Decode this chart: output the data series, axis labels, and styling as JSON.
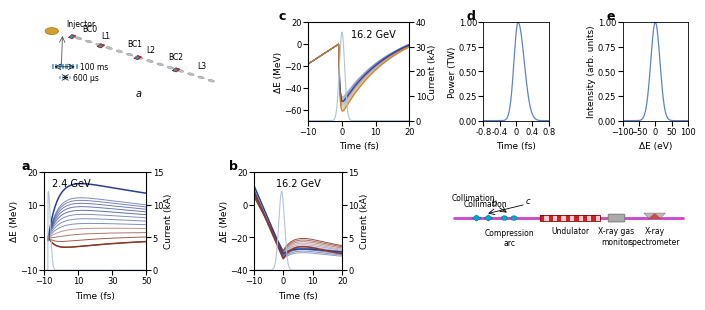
{
  "panel_a": {
    "xlim": [
      -10,
      50
    ],
    "ylim_left": [
      -10,
      20
    ],
    "ylim_right": [
      0,
      15
    ],
    "xlabel": "Time (fs)",
    "ylabel_left": "ΔE (MeV)",
    "ylabel_right": "Current (kA)",
    "annotation": "2.4 GeV",
    "xticks": [
      -10,
      10,
      30,
      50
    ],
    "yticks": [
      -10,
      0,
      10,
      20
    ],
    "yticks_r": [
      0,
      5,
      10,
      15
    ]
  },
  "panel_b": {
    "xlim": [
      -10,
      20
    ],
    "ylim_left": [
      -40,
      20
    ],
    "ylim_right": [
      0,
      15
    ],
    "xlabel": "Time (fs)",
    "ylabel_left": "ΔE (MeV)",
    "ylabel_right": "Current (kA)",
    "annotation": "16.2 GeV",
    "xticks": [
      -10,
      0,
      10,
      20
    ],
    "yticks": [
      -40,
      -20,
      0,
      20
    ],
    "yticks_r": [
      0,
      5,
      10,
      15
    ]
  },
  "panel_c": {
    "xlim": [
      -10,
      20
    ],
    "ylim_left": [
      -70,
      20
    ],
    "ylim_right": [
      0,
      40
    ],
    "xlabel": "Time (fs)",
    "ylabel_left": "ΔE (MeV)",
    "ylabel_right": "Current (kA)",
    "annotation": "16.2 GeV",
    "xticks": [
      -10,
      0,
      10,
      20
    ],
    "yticks": [
      -60,
      -40,
      -20,
      0,
      20
    ],
    "yticks_r": [
      0,
      10,
      20,
      30,
      40
    ]
  },
  "panel_d": {
    "xlim": [
      -0.8,
      0.8
    ],
    "ylim": [
      0,
      1.0
    ],
    "xlabel": "Time (fs)",
    "ylabel": "Power (TW)",
    "xticks": [
      -0.8,
      -0.4,
      0,
      0.4,
      0.8
    ],
    "yticks": [
      0,
      0.25,
      0.5,
      0.75,
      1.0
    ]
  },
  "panel_e": {
    "xlim": [
      -100,
      100
    ],
    "ylim": [
      0,
      1.0
    ],
    "xlabel": "ΔE (eV)",
    "ylabel": "Intensity (arb. units)",
    "xticks": [
      -100,
      -50,
      0,
      50,
      100
    ],
    "yticks": [
      0,
      0.25,
      0.5,
      0.75,
      1.0
    ]
  },
  "colors": {
    "blue_dark": "#2a3f8f",
    "blue_mid": "#4a5fa0",
    "purple": "#6b4e9e",
    "orange": "#c8872a",
    "orange_light": "#d4a060",
    "red_brown": "#8b3a2a",
    "current_color": "#b0c4d8",
    "panel_line": "#5b84c4"
  },
  "figure": {
    "bg_color": "#ffffff",
    "label_fontsize": 8,
    "tick_fontsize": 6.5,
    "annotation_fontsize": 7
  }
}
